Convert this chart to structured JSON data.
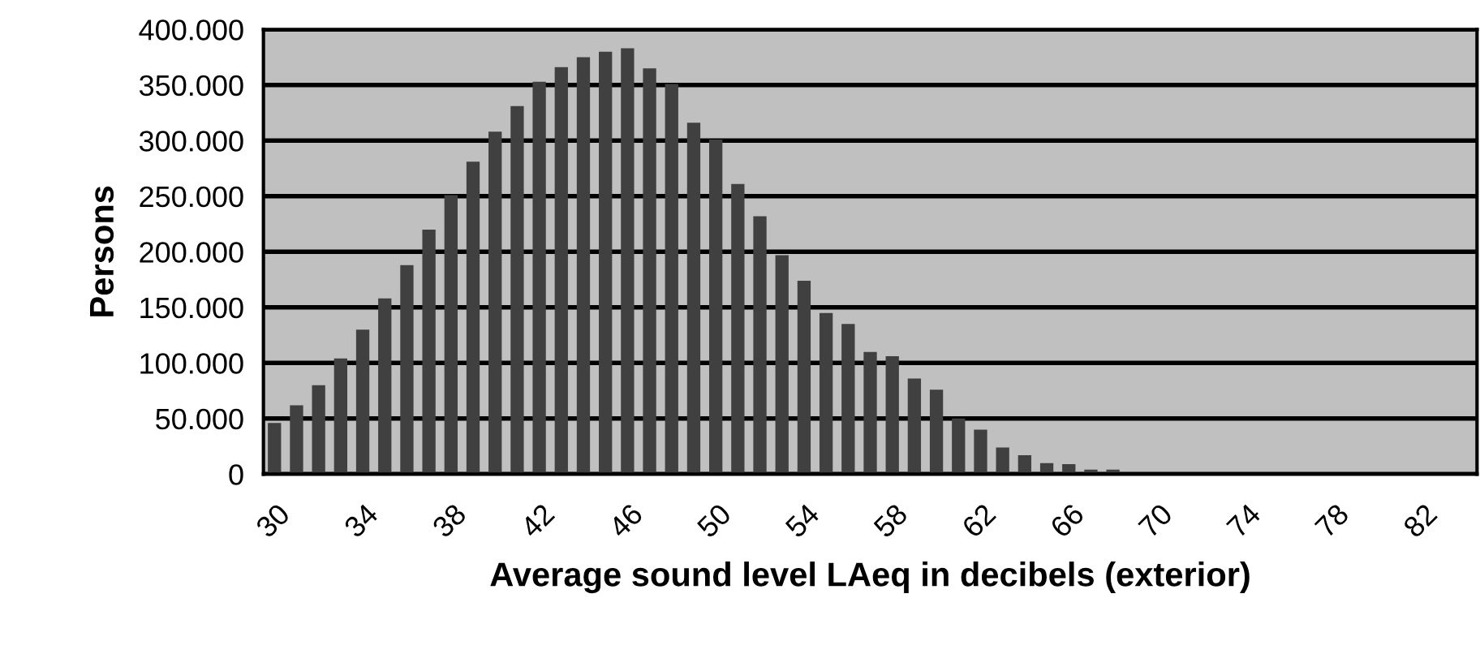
{
  "chart_data": {
    "type": "bar",
    "xlabel": "Average sound level LAeq in decibels (exterior)",
    "ylabel": "Persons",
    "categories": [
      "30",
      null,
      null,
      null,
      "34",
      null,
      null,
      null,
      "38",
      null,
      null,
      null,
      "42",
      null,
      null,
      null,
      "46",
      null,
      null,
      null,
      "50",
      null,
      null,
      null,
      "54",
      null,
      null,
      null,
      "58",
      null,
      null,
      null,
      "62",
      null,
      null,
      null,
      "66",
      null,
      null,
      null,
      "70",
      null,
      null,
      null,
      "74",
      null,
      null,
      null,
      "78",
      null,
      null,
      null,
      "82",
      null,
      null
    ],
    "values": [
      46000,
      62000,
      80000,
      104000,
      130000,
      158000,
      188000,
      220000,
      251000,
      281000,
      308000,
      331000,
      353000,
      366000,
      375000,
      380000,
      383000,
      365000,
      351000,
      316000,
      301000,
      261000,
      232000,
      197000,
      174000,
      145000,
      135000,
      110000,
      106000,
      86000,
      76000,
      50000,
      40000,
      24000,
      17000,
      10000,
      9000,
      4000,
      4000,
      0,
      0,
      0,
      0,
      0,
      0,
      0,
      0,
      0,
      0,
      0,
      0,
      0,
      0,
      0,
      0
    ],
    "color": "#404040",
    "ylim": [
      0,
      400000
    ],
    "yticks": [
      {
        "value": 0,
        "label": "0"
      },
      {
        "value": 50000,
        "label": "50.000"
      },
      {
        "value": 100000,
        "label": "100.000"
      },
      {
        "value": 150000,
        "label": "150.000"
      },
      {
        "value": 200000,
        "label": "200.000"
      },
      {
        "value": 250000,
        "label": "250.000"
      },
      {
        "value": 300000,
        "label": "300.000"
      },
      {
        "value": 350000,
        "label": "350.000"
      },
      {
        "value": 400000,
        "label": "400.000"
      }
    ],
    "grid": "y"
  }
}
